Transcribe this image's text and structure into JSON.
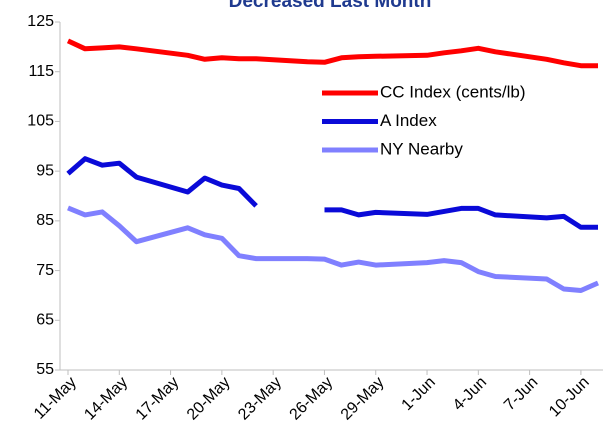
{
  "chart_data": {
    "type": "line",
    "title": "Decreased Last Month",
    "x": [
      "11-May",
      "12-May",
      "13-May",
      "14-May",
      "15-May",
      "18-May",
      "19-May",
      "20-May",
      "21-May",
      "22-May",
      "25-May",
      "26-May",
      "27-May",
      "28-May",
      "29-May",
      "1-Jun",
      "2-Jun",
      "3-Jun",
      "4-Jun",
      "5-Jun",
      "8-Jun",
      "9-Jun",
      "10-Jun",
      "11-Jun"
    ],
    "xlim": [
      "11-May",
      "11-Jun"
    ],
    "xticks": [
      "11-May",
      "14-May",
      "17-May",
      "20-May",
      "23-May",
      "26-May",
      "29-May",
      "1-Jun",
      "4-Jun",
      "7-Jun",
      "10-Jun"
    ],
    "ylim": [
      55,
      125
    ],
    "yticks": [
      55,
      65,
      75,
      85,
      95,
      105,
      115,
      125
    ],
    "grid": false,
    "legend": "upper right",
    "series": [
      {
        "name": "CC Index (cents/lb)",
        "color": "#ff0000",
        "values": [
          121.2,
          119.6,
          119.8,
          120.0,
          119.6,
          118.3,
          117.5,
          117.8,
          117.6,
          117.6,
          117.0,
          116.9,
          117.8,
          118.0,
          118.1,
          118.3,
          118.8,
          119.2,
          119.7,
          119.0,
          117.5,
          116.8,
          116.2,
          116.2
        ]
      },
      {
        "name": "A Index",
        "color": "#0a0ad8",
        "values": [
          94.5,
          97.5,
          96.2,
          96.6,
          93.8,
          90.8,
          93.6,
          92.2,
          91.5,
          88.0,
          null,
          87.2,
          87.2,
          86.2,
          86.7,
          86.3,
          86.9,
          87.5,
          87.5,
          86.2,
          85.6,
          85.9,
          83.7,
          83.7
        ]
      },
      {
        "name": "NY Nearby",
        "color": "#8080ff",
        "values": [
          87.6,
          86.2,
          86.8,
          84.0,
          80.8,
          83.6,
          82.2,
          81.5,
          78.0,
          77.4,
          77.4,
          77.3,
          76.1,
          76.7,
          76.1,
          76.6,
          77.0,
          76.6,
          74.8,
          73.8,
          73.3,
          71.3,
          71.0,
          72.5
        ]
      }
    ]
  }
}
